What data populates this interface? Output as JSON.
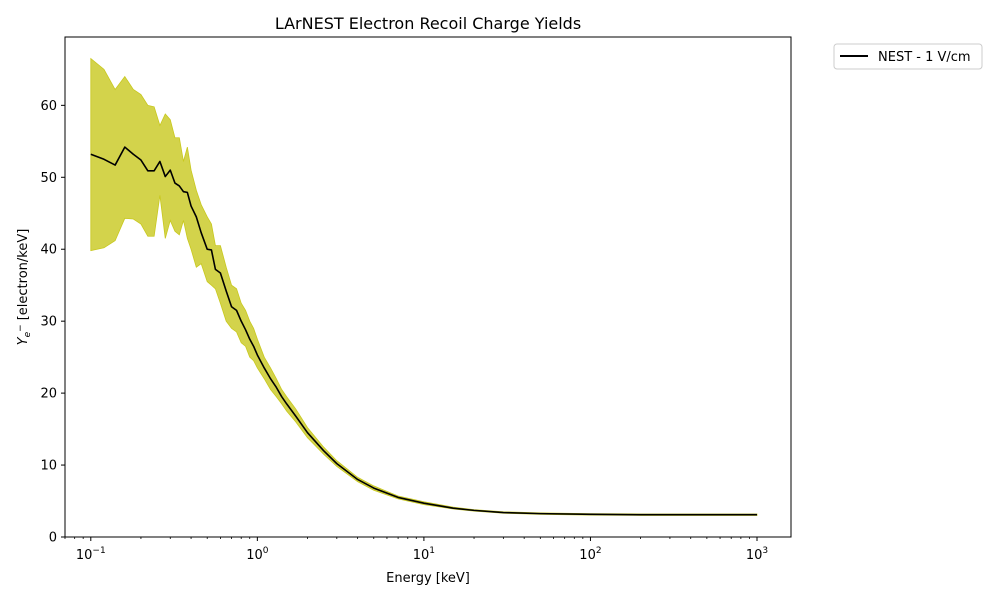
{
  "chart_data": {
    "type": "line",
    "title": "LArNEST Electron Recoil Charge Yields",
    "xlabel": "Energy [keV]",
    "ylabel": "Y_e- [electron/keV]",
    "xscale": "log",
    "xlim": [
      0.07,
      1600
    ],
    "ylim": [
      0,
      69.5
    ],
    "x_ticks": [
      {
        "value": 0.1,
        "base": "10",
        "exp": "−1"
      },
      {
        "value": 1,
        "base": "10",
        "exp": "0"
      },
      {
        "value": 10,
        "base": "10",
        "exp": "1"
      },
      {
        "value": 100,
        "base": "10",
        "exp": "2"
      },
      {
        "value": 1000,
        "base": "10",
        "exp": "3"
      }
    ],
    "y_ticks": [
      0,
      10,
      20,
      30,
      40,
      50,
      60
    ],
    "grid": false,
    "legend": {
      "placement": "outside-top-right"
    },
    "colors": {
      "line": "#000000",
      "band": "#c8c81e"
    },
    "series": [
      {
        "name": "NEST - 1 V/cm",
        "x": [
          0.1,
          0.12,
          0.14,
          0.16,
          0.18,
          0.2,
          0.22,
          0.24,
          0.26,
          0.28,
          0.3,
          0.32,
          0.34,
          0.36,
          0.38,
          0.4,
          0.43,
          0.46,
          0.5,
          0.53,
          0.56,
          0.6,
          0.65,
          0.7,
          0.75,
          0.8,
          0.85,
          0.9,
          0.95,
          1.0,
          1.1,
          1.2,
          1.3,
          1.4,
          1.5,
          1.7,
          2.0,
          2.5,
          3.0,
          4.0,
          5.0,
          7.0,
          10,
          15,
          20,
          30,
          50,
          100,
          200,
          500,
          1000
        ],
        "y": [
          53.2,
          52.5,
          51.7,
          54.2,
          53.2,
          52.4,
          50.9,
          50.9,
          52.2,
          50.1,
          51.0,
          49.2,
          48.8,
          48.0,
          47.9,
          46.0,
          44.5,
          42.3,
          40.0,
          39.9,
          37.2,
          36.7,
          34.2,
          32.0,
          31.5,
          30.0,
          28.8,
          27.5,
          26.5,
          25.3,
          23.5,
          22.0,
          20.8,
          19.5,
          18.5,
          16.8,
          14.5,
          12.0,
          10.2,
          8.0,
          6.8,
          5.5,
          4.7,
          4.0,
          3.7,
          3.4,
          3.25,
          3.15,
          3.1,
          3.1,
          3.1
        ],
        "lower": [
          39.8,
          40.2,
          41.2,
          44.3,
          44.2,
          43.5,
          41.8,
          41.8,
          47.5,
          41.5,
          44.0,
          42.5,
          42.0,
          44.0,
          41.5,
          40.0,
          37.5,
          38.0,
          35.5,
          35.0,
          34.5,
          32.5,
          30.0,
          29.0,
          28.5,
          27.0,
          26.5,
          25.0,
          24.5,
          23.5,
          22.0,
          20.5,
          19.5,
          18.5,
          17.5,
          16.0,
          13.8,
          11.5,
          9.8,
          7.7,
          6.5,
          5.3,
          4.5,
          3.9,
          3.6,
          3.3,
          3.15,
          3.05,
          3.0,
          3.0,
          3.0
        ],
        "upper": [
          66.5,
          65.0,
          62.2,
          64.0,
          62.2,
          61.5,
          60.0,
          59.8,
          57.2,
          58.8,
          58.0,
          55.5,
          55.5,
          52.2,
          54.2,
          51.0,
          48.2,
          46.2,
          44.5,
          43.5,
          40.5,
          40.5,
          37.5,
          35.0,
          34.5,
          32.5,
          31.5,
          30.0,
          29.0,
          27.5,
          25.0,
          23.5,
          22.0,
          20.5,
          19.5,
          17.8,
          15.2,
          12.5,
          10.6,
          8.3,
          7.1,
          5.7,
          4.9,
          4.15,
          3.8,
          3.5,
          3.35,
          3.25,
          3.2,
          3.2,
          3.2
        ]
      }
    ]
  }
}
